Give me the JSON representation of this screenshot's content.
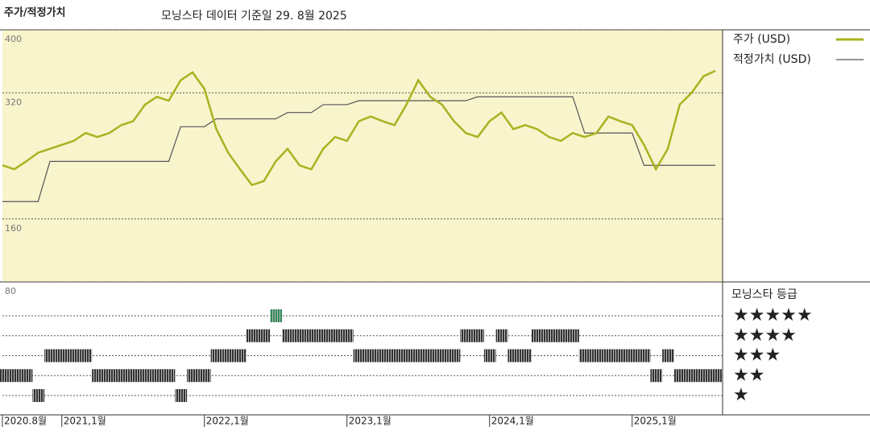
{
  "chart_data": {
    "type": "line",
    "title": "주가/적정가치",
    "subtitle": "모닝스타 데이터 기준일 29. 8월 2025",
    "categories": [
      "2020.8월",
      null,
      null,
      null,
      null,
      "2021,1월",
      null,
      null,
      null,
      null,
      null,
      null,
      null,
      null,
      null,
      null,
      null,
      "2022,1월",
      null,
      null,
      null,
      null,
      null,
      null,
      null,
      null,
      null,
      null,
      null,
      "2023,1월",
      null,
      null,
      null,
      null,
      null,
      null,
      null,
      null,
      null,
      null,
      null,
      "2024,1월",
      null,
      null,
      null,
      null,
      null,
      null,
      null,
      null,
      null,
      null,
      null,
      "2025,1월",
      null,
      null,
      null,
      null,
      null,
      null,
      null
    ],
    "series": [
      {
        "name": "주가 (USD)",
        "color": "#a8b320",
        "values": [
          228,
          223,
          233,
          244,
          249,
          254,
          259,
          269,
          264,
          269,
          279,
          284,
          305,
          315,
          310,
          336,
          346,
          325,
          274,
          244,
          223,
          203,
          208,
          233,
          249,
          228,
          223,
          249,
          264,
          259,
          284,
          290,
          284,
          279,
          305,
          336,
          315,
          305,
          284,
          269,
          264,
          284,
          295,
          274,
          279,
          274,
          264,
          259,
          269,
          264,
          269,
          290,
          284,
          279,
          254,
          223,
          249,
          305,
          320,
          341,
          348
        ]
      },
      {
        "name": "적정가치 (USD)",
        "color": "#555555",
        "values": [
          182,
          182,
          182,
          182,
          233,
          233,
          233,
          233,
          233,
          233,
          233,
          233,
          233,
          233,
          233,
          277,
          277,
          277,
          287,
          287,
          287,
          287,
          287,
          287,
          295,
          295,
          295,
          305,
          305,
          305,
          310,
          310,
          310,
          310,
          310,
          310,
          310,
          310,
          310,
          310,
          315,
          315,
          315,
          315,
          315,
          315,
          315,
          315,
          315,
          269,
          269,
          269,
          269,
          269,
          228,
          228,
          228,
          228,
          228,
          228,
          228
        ]
      }
    ],
    "ylim": [
      80,
      400
    ],
    "yticks": [
      80,
      160,
      320,
      400
    ],
    "grid": true,
    "rating": {
      "title": "모닝스타 등급",
      "levels": [
        "★",
        "★★",
        "★★★",
        "★★★★",
        "★★★★★"
      ],
      "colors": [
        "#333333",
        "#2e8b57"
      ],
      "values": [
        2,
        2,
        2,
        1,
        3,
        3,
        3,
        3,
        2,
        2,
        2,
        2,
        2,
        2,
        2,
        1,
        2,
        2,
        3,
        3,
        3,
        4,
        4,
        5,
        4,
        4,
        4,
        4,
        4,
        4,
        3,
        3,
        3,
        3,
        3,
        3,
        3,
        3,
        3,
        4,
        4,
        3,
        4,
        3,
        3,
        4,
        4,
        4,
        4,
        3,
        3,
        3,
        3,
        3,
        3,
        2,
        3,
        2,
        2,
        2,
        2
      ]
    }
  }
}
